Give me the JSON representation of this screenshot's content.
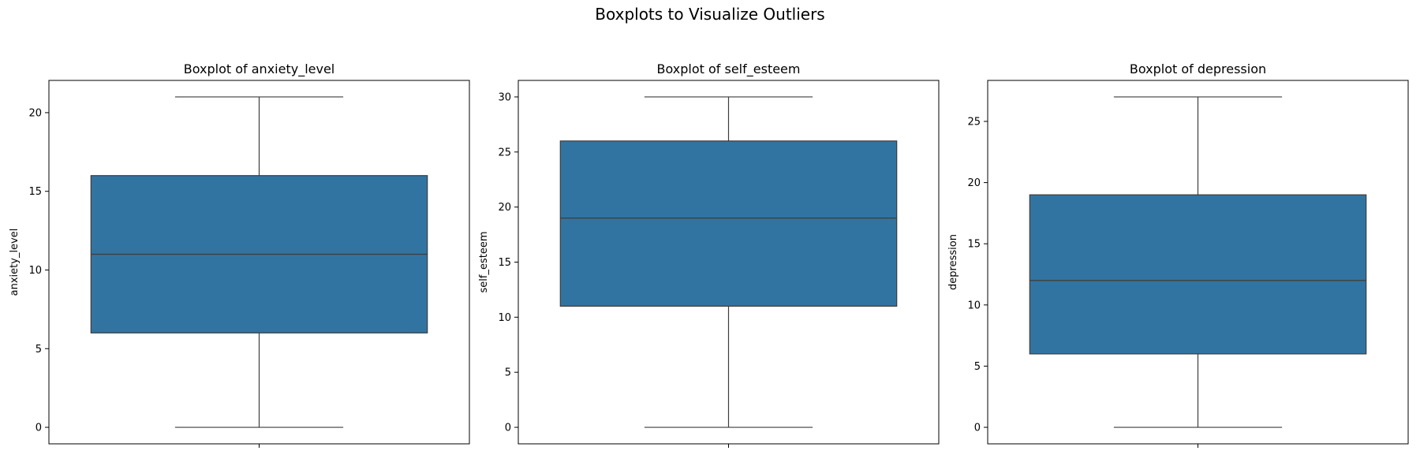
{
  "figure": {
    "title": "Boxplots to Visualize Outliers"
  },
  "colors": {
    "box_fill": "#3274a1",
    "line": "#3d3d3d",
    "frame": "#000000"
  },
  "chart_data": [
    {
      "type": "box",
      "title": "Boxplot of anxiety_level",
      "xlabel": "",
      "ylabel": "anxiety_level",
      "ylim": [
        -1.05,
        22.05
      ],
      "yticks": [
        0,
        5,
        10,
        15,
        20
      ],
      "stats": {
        "whislo": 0,
        "q1": 6,
        "median": 11,
        "q3": 16,
        "whishi": 21
      },
      "grid": false
    },
    {
      "type": "box",
      "title": "Boxplot of self_esteem",
      "xlabel": "",
      "ylabel": "self_esteem",
      "ylim": [
        -1.5,
        31.5
      ],
      "yticks": [
        0,
        5,
        10,
        15,
        20,
        25,
        30
      ],
      "stats": {
        "whislo": 0,
        "q1": 11,
        "median": 19,
        "q3": 26,
        "whishi": 30
      },
      "grid": false
    },
    {
      "type": "box",
      "title": "Boxplot of depression",
      "xlabel": "",
      "ylabel": "depression",
      "ylim": [
        -1.35,
        28.35
      ],
      "yticks": [
        0,
        5,
        10,
        15,
        20,
        25
      ],
      "stats": {
        "whislo": 0,
        "q1": 6,
        "median": 12,
        "q3": 19,
        "whishi": 27
      },
      "grid": false
    }
  ]
}
